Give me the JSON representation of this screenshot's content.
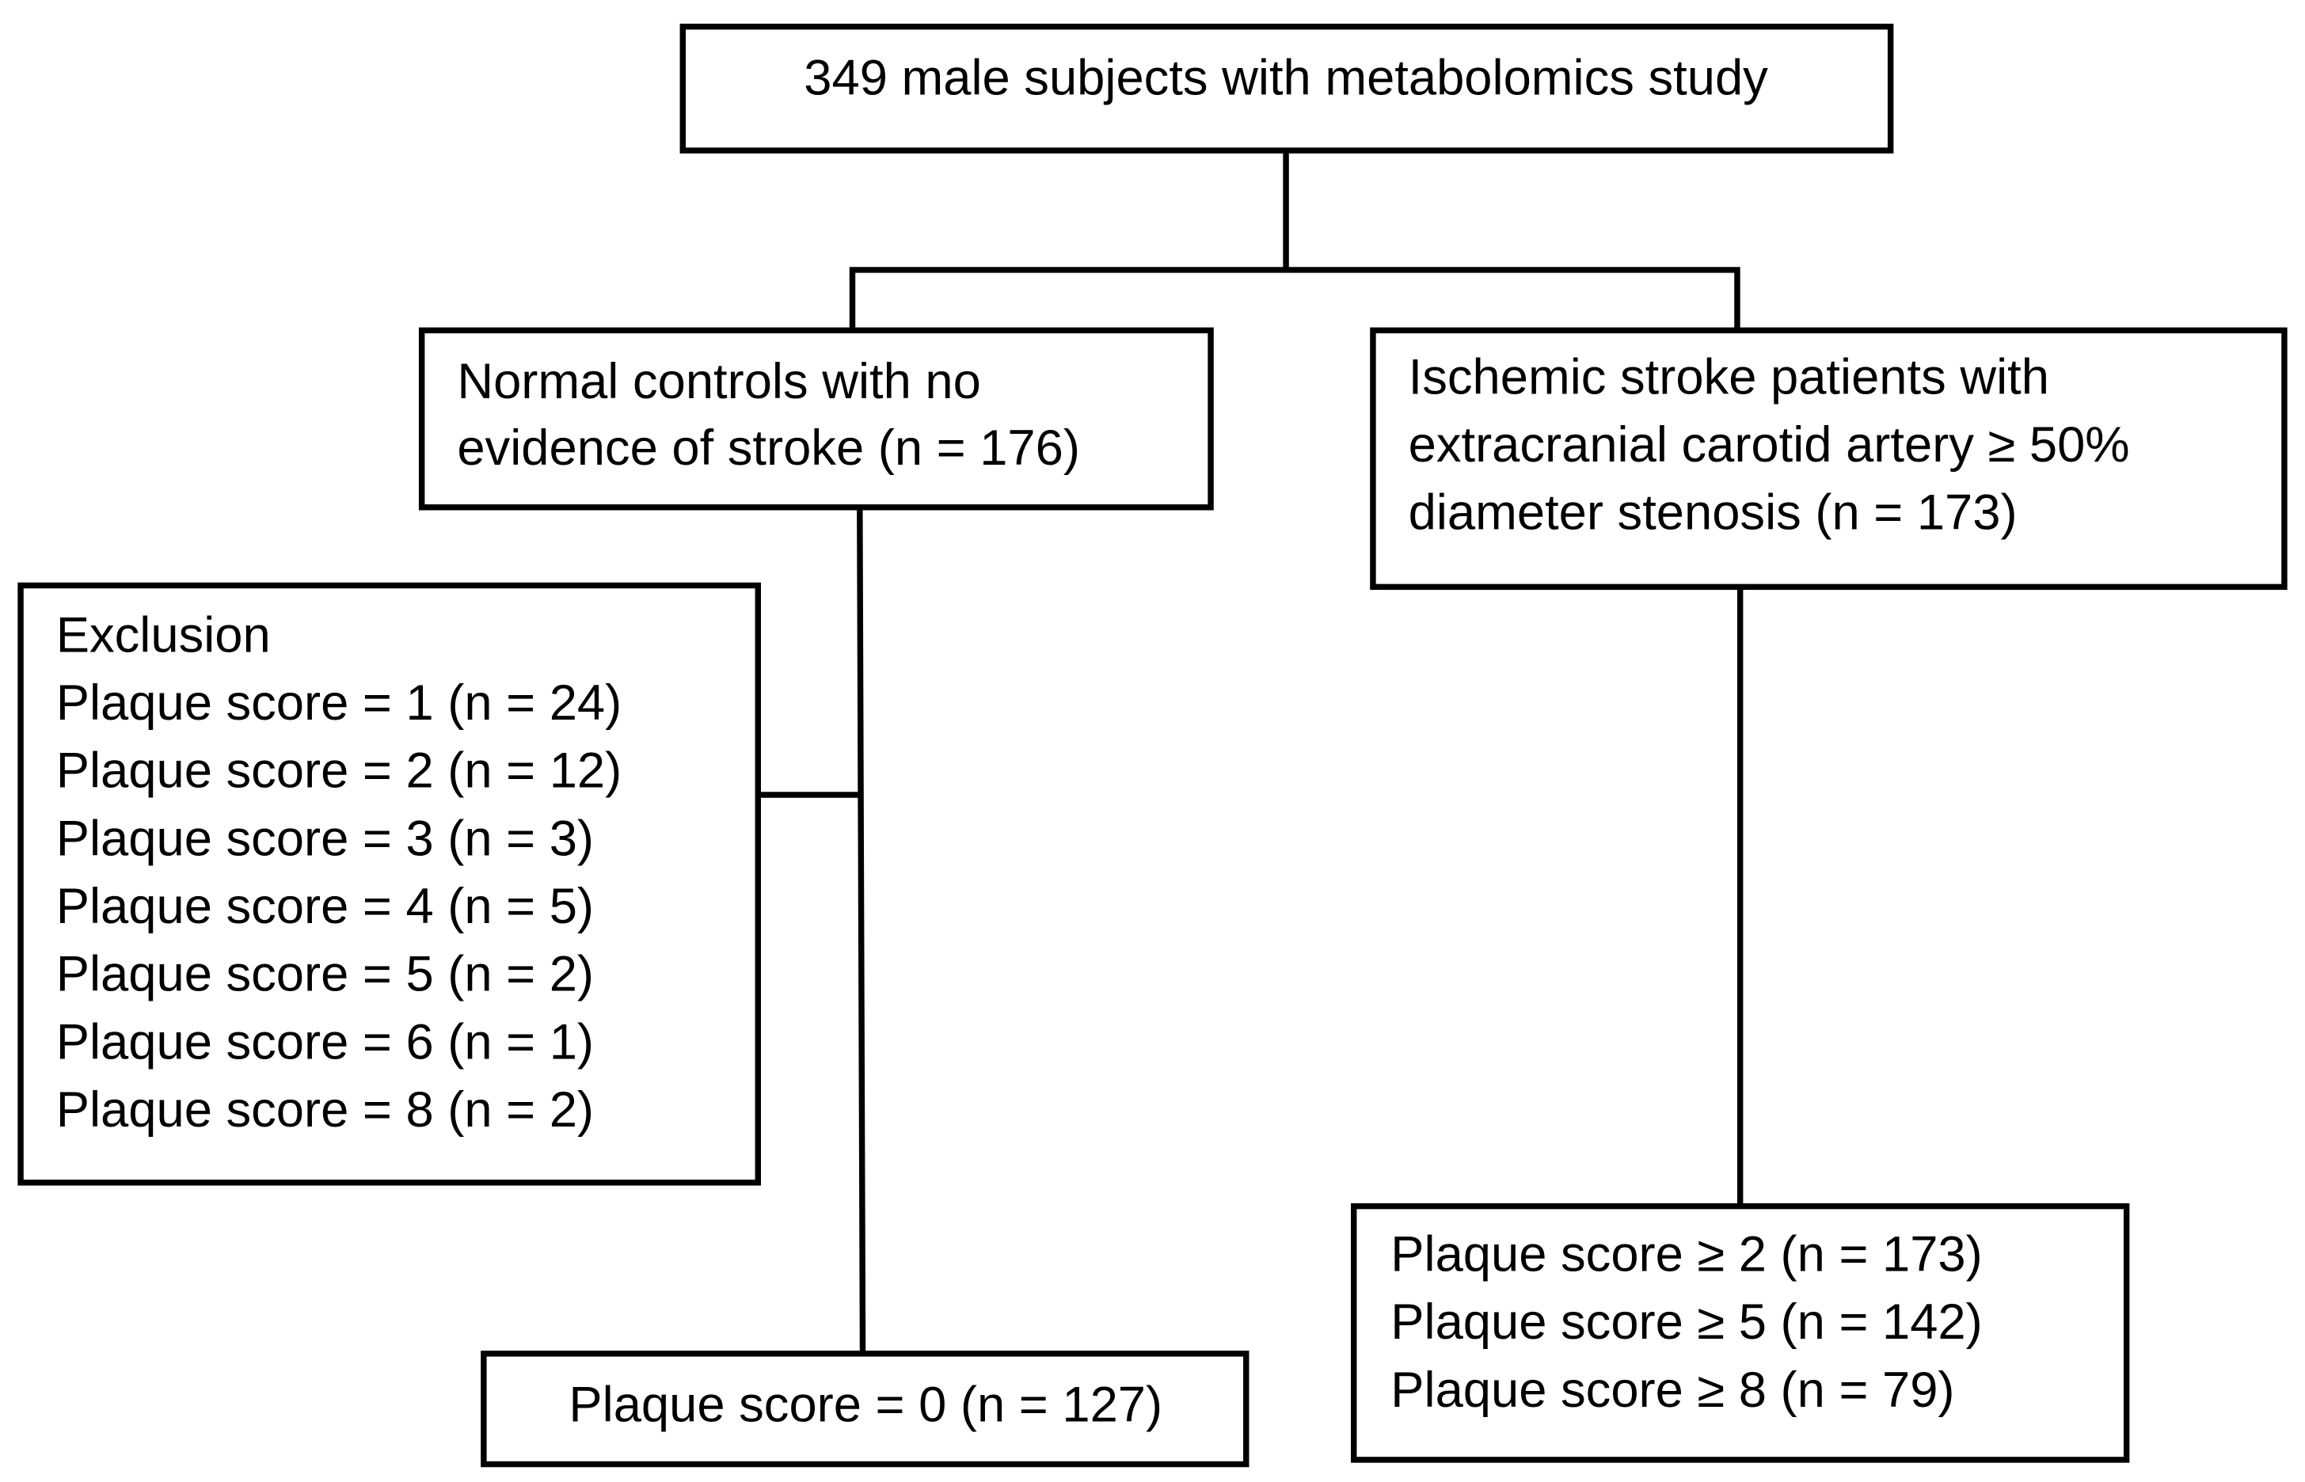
{
  "nodes": [
    {
      "lines": [
        "349 male subjects with metabolomics study"
      ]
    },
    {
      "lines": [
        "Normal controls with no",
        "evidence of stroke (n = 176)"
      ]
    },
    {
      "lines": [
        "Ischemic stroke patients with",
        "extracranial carotid artery ≥ 50%",
        "diameter stenosis (n = 173)"
      ]
    },
    {
      "lines": [
        "Exclusion",
        "Plaque score = 1 (n = 24)",
        "Plaque score = 2 (n = 12)",
        "Plaque score = 3 (n = 3)",
        "Plaque score = 4 (n = 5)",
        "Plaque score = 5 (n = 2)",
        "Plaque score = 6 (n = 1)",
        "Plaque score = 8 (n = 2)"
      ]
    },
    {
      "lines": [
        "Plaque score = 0 (n = 127)"
      ]
    },
    {
      "lines": [
        "Plaque score ≥ 2 (n = 173)",
        "Plaque score ≥ 5 (n = 142)",
        "Plaque score ≥ 8 (n = 79)"
      ]
    }
  ]
}
